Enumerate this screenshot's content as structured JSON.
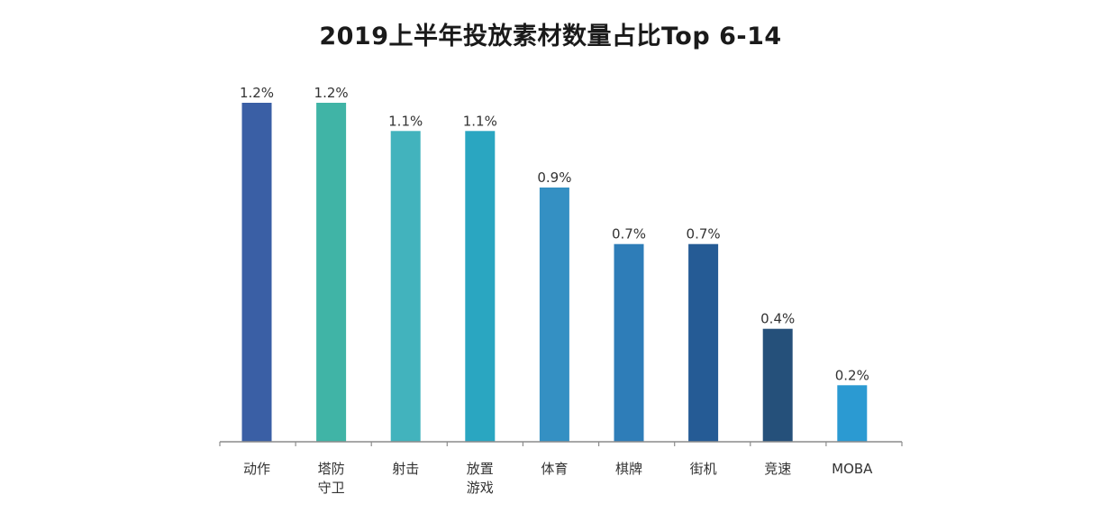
{
  "chart_data": {
    "type": "bar",
    "title": "2019上半年投放素材数量占比Top 6-14",
    "xlabel": "",
    "ylabel": "",
    "categories": [
      [
        "动作"
      ],
      [
        "塔防",
        "守卫"
      ],
      [
        "射击"
      ],
      [
        "放置",
        "游戏"
      ],
      [
        "体育"
      ],
      [
        "棋牌"
      ],
      [
        "街机"
      ],
      [
        "竞速"
      ],
      [
        "MOBA"
      ]
    ],
    "values": [
      1.2,
      1.2,
      1.1,
      1.1,
      0.9,
      0.7,
      0.7,
      0.4,
      0.2
    ],
    "value_labels": [
      "1.2%",
      "1.2%",
      "1.1%",
      "1.1%",
      "0.9%",
      "0.7%",
      "0.7%",
      "0.4%",
      "0.2%"
    ],
    "colors": [
      "#3a5fa5",
      "#40b4a6",
      "#42b3bd",
      "#2aa6c1",
      "#3490c3",
      "#2e7db8",
      "#255b95",
      "#25507a",
      "#2b9ad2"
    ],
    "ylim": [
      0,
      1.2
    ],
    "grid": false,
    "legend": "none"
  }
}
